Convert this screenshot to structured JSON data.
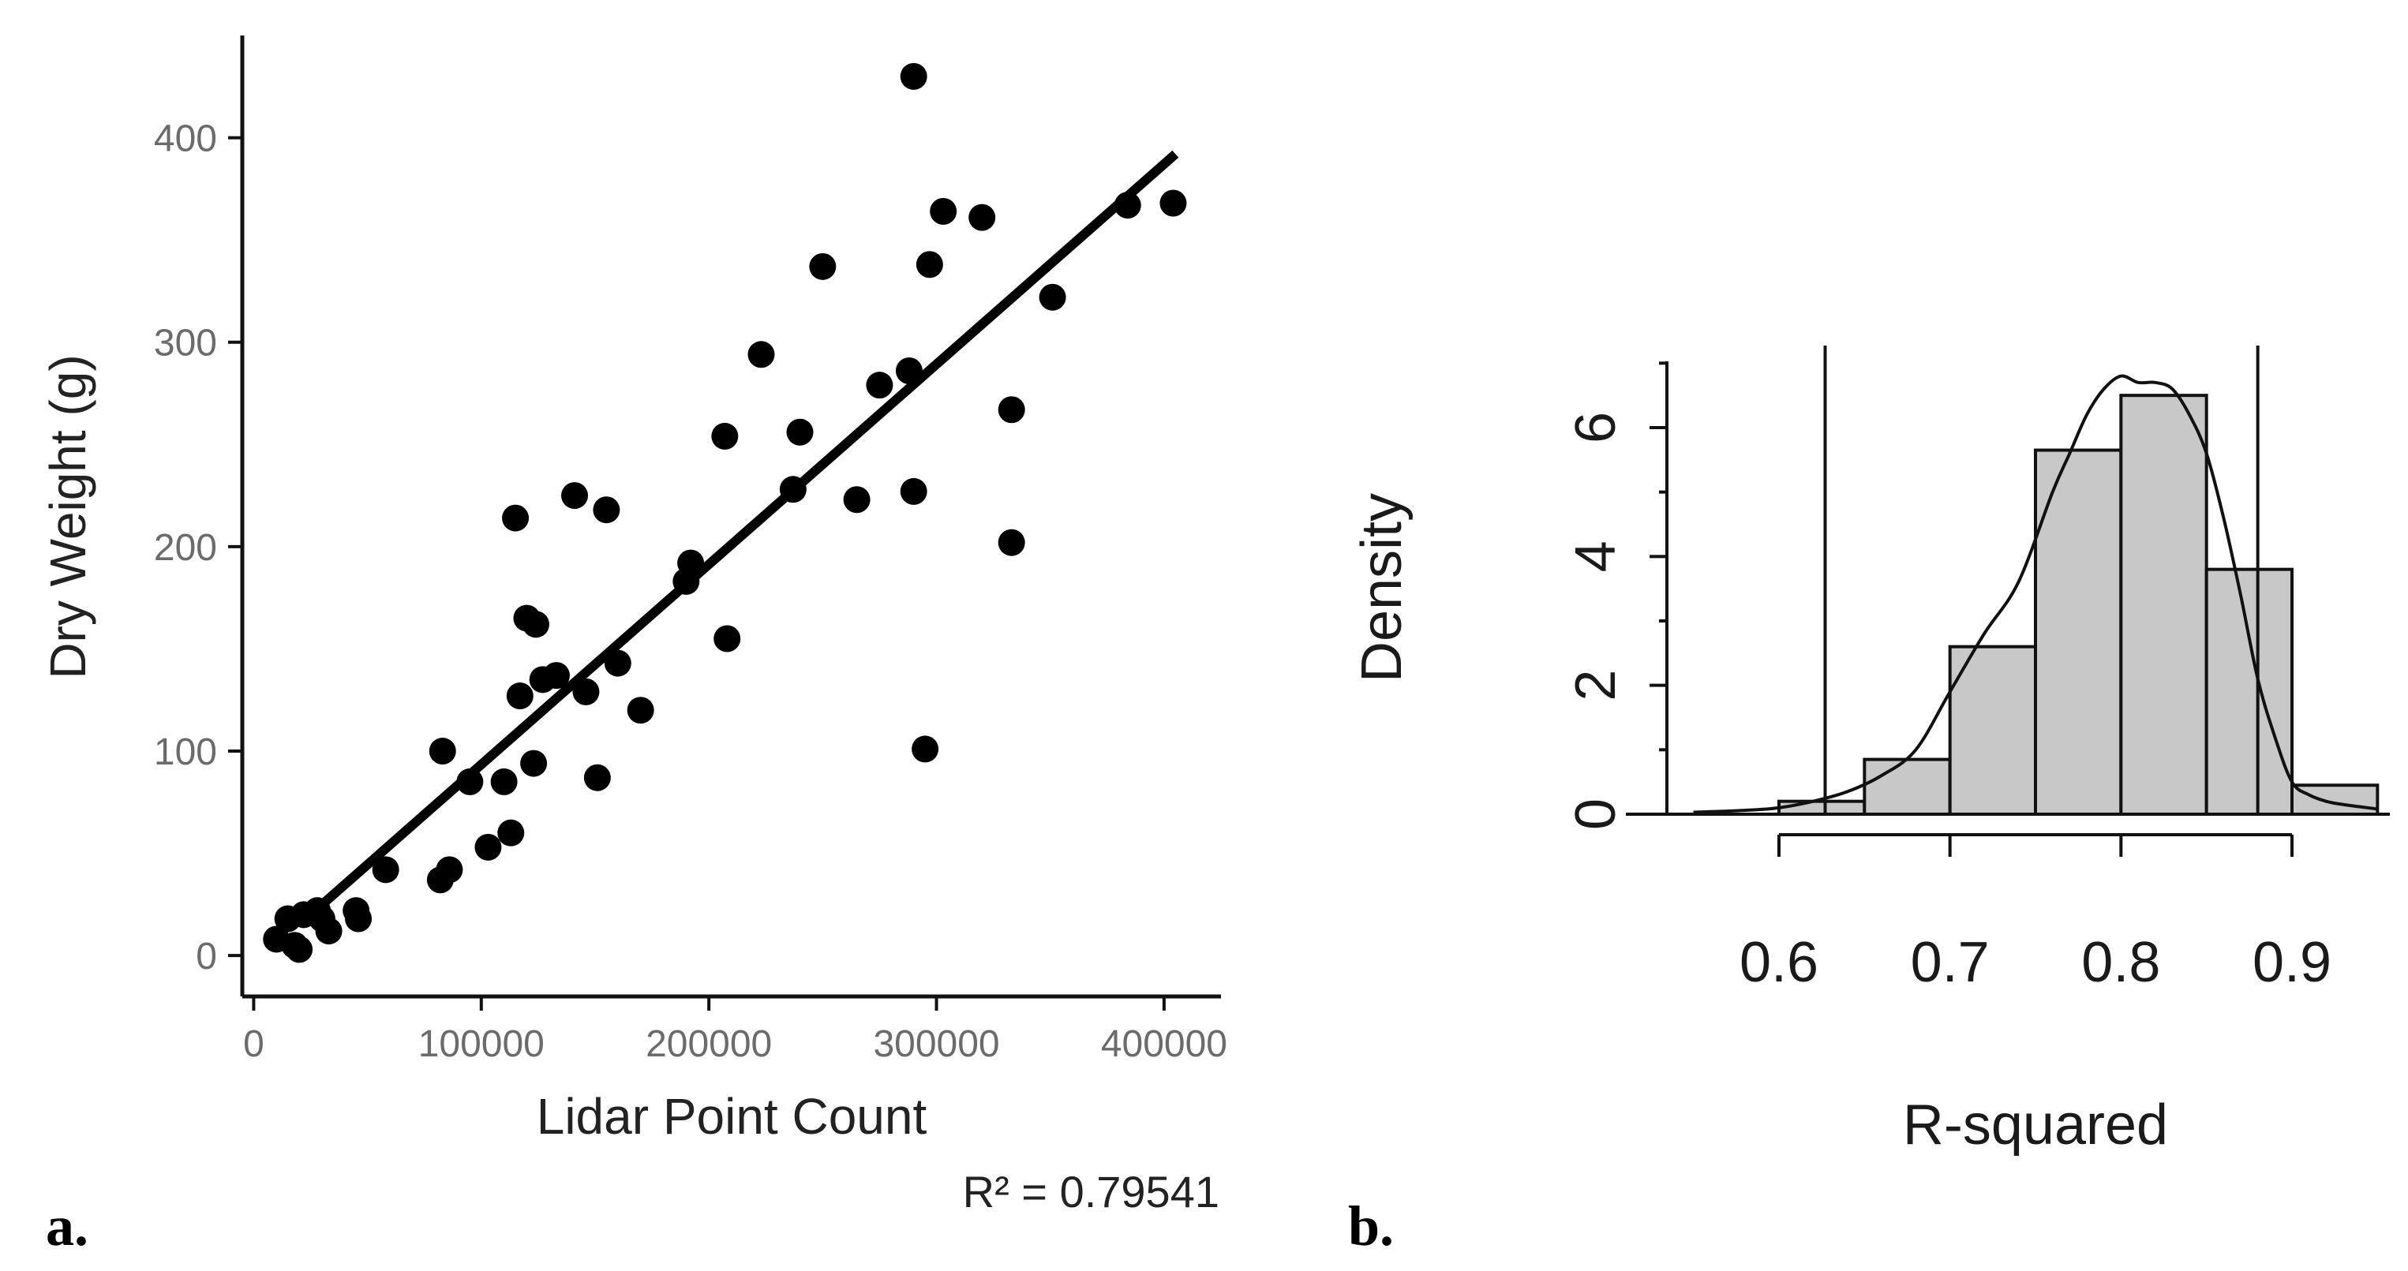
{
  "chart_data": [
    {
      "type": "scatter",
      "panel_label": "a.",
      "xlabel": "Lidar Point Count",
      "ylabel": "Dry Weight (g)",
      "xlim": [
        -5000,
        425000
      ],
      "ylim": [
        -20,
        450
      ],
      "xticks": [
        0,
        100000,
        200000,
        300000,
        400000
      ],
      "xtick_labels": [
        "0",
        "100000",
        "200000",
        "300000",
        "400000"
      ],
      "yticks": [
        0,
        100,
        200,
        300,
        400
      ],
      "ytick_labels": [
        "0",
        "100",
        "200",
        "300",
        "400"
      ],
      "points": [
        [
          10000,
          8
        ],
        [
          15000,
          18
        ],
        [
          18000,
          5
        ],
        [
          20000,
          3
        ],
        [
          22000,
          20
        ],
        [
          28000,
          22
        ],
        [
          30000,
          18
        ],
        [
          33000,
          12
        ],
        [
          45000,
          22
        ],
        [
          46000,
          18
        ],
        [
          58000,
          42
        ],
        [
          82000,
          37
        ],
        [
          83000,
          100
        ],
        [
          86000,
          42
        ],
        [
          95000,
          85
        ],
        [
          103000,
          53
        ],
        [
          110000,
          85
        ],
        [
          113000,
          60
        ],
        [
          115000,
          214
        ],
        [
          117000,
          127
        ],
        [
          120000,
          165
        ],
        [
          123000,
          94
        ],
        [
          124000,
          162
        ],
        [
          127000,
          135
        ],
        [
          133000,
          137
        ],
        [
          141000,
          225
        ],
        [
          146000,
          129
        ],
        [
          151000,
          87
        ],
        [
          155000,
          218
        ],
        [
          160000,
          143
        ],
        [
          170000,
          120
        ],
        [
          190000,
          183
        ],
        [
          192000,
          192
        ],
        [
          207000,
          254
        ],
        [
          208000,
          155
        ],
        [
          223000,
          294
        ],
        [
          237000,
          228
        ],
        [
          240000,
          256
        ],
        [
          250000,
          337
        ],
        [
          265000,
          223
        ],
        [
          275000,
          279
        ],
        [
          288000,
          286
        ],
        [
          290000,
          227
        ],
        [
          290000,
          430
        ],
        [
          295000,
          101
        ],
        [
          297000,
          338
        ],
        [
          303000,
          364
        ],
        [
          320000,
          361
        ],
        [
          333000,
          267
        ],
        [
          333000,
          202
        ],
        [
          351000,
          322
        ],
        [
          384000,
          367
        ],
        [
          404000,
          368
        ]
      ],
      "fit_line": {
        "x": [
          25000,
          405000
        ],
        "y": [
          20,
          392
        ]
      },
      "annotation": "R² = 0.79541"
    },
    {
      "type": "histogram",
      "panel_label": "b.",
      "xlabel": "R-squared",
      "ylabel": "Density",
      "xlim": [
        0.54,
        0.96
      ],
      "ylim": [
        0,
        7
      ],
      "xticks": [
        0.6,
        0.7,
        0.8,
        0.9
      ],
      "xtick_labels": [
        "0.6",
        "0.7",
        "0.8",
        "0.9"
      ],
      "yticks": [
        0,
        2,
        4,
        6
      ],
      "ytick_labels": [
        "0",
        "2",
        "4",
        "6"
      ],
      "bins": [
        {
          "start": 0.6,
          "end": 0.65,
          "density": 0.2
        },
        {
          "start": 0.65,
          "end": 0.7,
          "density": 0.85
        },
        {
          "start": 0.7,
          "end": 0.75,
          "density": 2.6
        },
        {
          "start": 0.75,
          "end": 0.8,
          "density": 5.65
        },
        {
          "start": 0.8,
          "end": 0.85,
          "density": 6.5
        },
        {
          "start": 0.85,
          "end": 0.9,
          "density": 3.8
        },
        {
          "start": 0.9,
          "end": 0.95,
          "density": 0.45
        }
      ],
      "density_curve": {
        "x": [
          0.55,
          0.58,
          0.6,
          0.62,
          0.64,
          0.66,
          0.68,
          0.7,
          0.72,
          0.74,
          0.76,
          0.77,
          0.78,
          0.79,
          0.8,
          0.81,
          0.82,
          0.83,
          0.84,
          0.85,
          0.86,
          0.87,
          0.88,
          0.89,
          0.9,
          0.91,
          0.92,
          0.93,
          0.95
        ],
        "y": [
          0.03,
          0.06,
          0.1,
          0.2,
          0.35,
          0.6,
          1.0,
          1.9,
          2.8,
          3.6,
          5.0,
          5.6,
          6.2,
          6.6,
          6.8,
          6.7,
          6.7,
          6.6,
          6.2,
          5.6,
          4.6,
          3.4,
          2.1,
          1.2,
          0.5,
          0.3,
          0.2,
          0.15,
          0.08
        ]
      },
      "vlines": [
        0.627,
        0.88
      ],
      "bar_fill": "#c8c8c8"
    }
  ]
}
